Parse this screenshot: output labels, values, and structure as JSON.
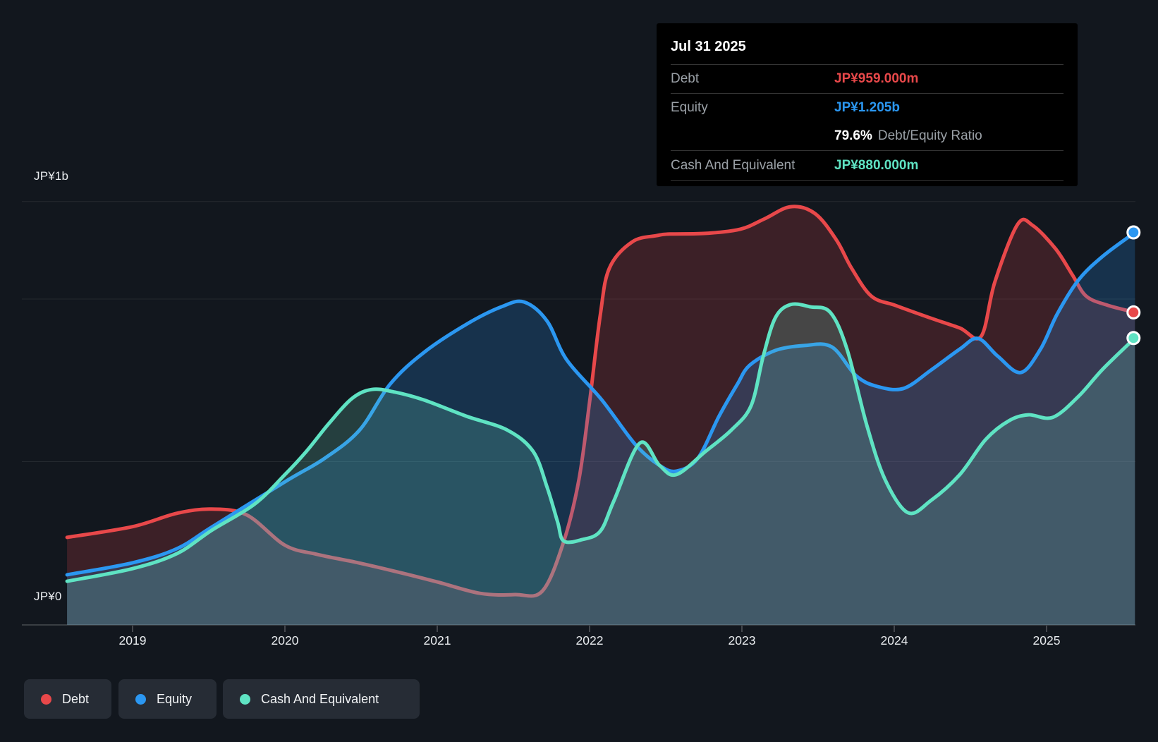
{
  "app": {
    "background": "#12171e"
  },
  "y_axis": {
    "top_label": "JP¥1b",
    "bottom_label": "JP¥0"
  },
  "x_axis": {
    "tick_years": [
      2019,
      2020,
      2021,
      2022,
      2023,
      2024,
      2025
    ]
  },
  "tooltip": {
    "title": "Jul 31 2025",
    "rows": [
      {
        "name": "debt",
        "label": "Debt",
        "value": "JP¥959.000m",
        "color": "#e8484a"
      },
      {
        "name": "equity",
        "label": "Equity",
        "value": "JP¥1.205b",
        "color": "#2b97f1"
      },
      {
        "name": "ratio",
        "label": "",
        "value_bold": "79.6%",
        "value_suffix": "Debt/Equity Ratio"
      },
      {
        "name": "cash",
        "label": "Cash And Equivalent",
        "value": "JP¥880.000m",
        "color": "#5fe3c3"
      }
    ]
  },
  "legend": [
    {
      "label": "Debt",
      "color": "#e8484a"
    },
    {
      "label": "Equity",
      "color": "#2b97f1"
    },
    {
      "label": "Cash And Equivalent",
      "color": "#5fe3c3"
    }
  ],
  "chart_data": {
    "type": "area",
    "title": "Debt to Equity history",
    "x_unit": "decimal_year",
    "x_range": [
      2018.57,
      2025.58
    ],
    "ylim_billion_jpy": [
      0,
      1.3
    ],
    "gridlines_billion_jpy": [
      0.5,
      1.0,
      1.3
    ],
    "grid_on": true,
    "legend_position": "bottom-left",
    "last_point_date": "Jul 31 2025",
    "last_values": {
      "debt": "JP¥959.000m",
      "equity": "JP¥1.205b",
      "cash": "JP¥880.000m",
      "debt_equity_ratio": "79.6%"
    },
    "series": [
      {
        "name": "Debt",
        "color": "#e8484a",
        "fill": "rgba(232,72,74,0.20)",
        "points": [
          [
            2018.57,
            0.267
          ],
          [
            2019.0,
            0.3
          ],
          [
            2019.29,
            0.341
          ],
          [
            2019.52,
            0.354
          ],
          [
            2019.75,
            0.336
          ],
          [
            2020.0,
            0.243
          ],
          [
            2020.21,
            0.215
          ],
          [
            2020.46,
            0.191
          ],
          [
            2020.72,
            0.163
          ],
          [
            2021.0,
            0.13
          ],
          [
            2021.28,
            0.095
          ],
          [
            2021.51,
            0.091
          ],
          [
            2021.69,
            0.102
          ],
          [
            2021.83,
            0.254
          ],
          [
            2021.93,
            0.445
          ],
          [
            2022.0,
            0.683
          ],
          [
            2022.07,
            0.95
          ],
          [
            2022.13,
            1.095
          ],
          [
            2022.28,
            1.176
          ],
          [
            2022.44,
            1.195
          ],
          [
            2022.53,
            1.2
          ],
          [
            2022.76,
            1.202
          ],
          [
            2022.99,
            1.215
          ],
          [
            2023.15,
            1.247
          ],
          [
            2023.32,
            1.284
          ],
          [
            2023.48,
            1.263
          ],
          [
            2023.62,
            1.182
          ],
          [
            2023.72,
            1.095
          ],
          [
            2023.85,
            1.009
          ],
          [
            2024.01,
            0.98
          ],
          [
            2024.23,
            0.943
          ],
          [
            2024.43,
            0.911
          ],
          [
            2024.57,
            0.885
          ],
          [
            2024.66,
            1.052
          ],
          [
            2024.81,
            1.23
          ],
          [
            2024.91,
            1.226
          ],
          [
            2025.06,
            1.154
          ],
          [
            2025.17,
            1.074
          ],
          [
            2025.26,
            1.009
          ],
          [
            2025.4,
            0.981
          ],
          [
            2025.58,
            0.959
          ]
        ]
      },
      {
        "name": "Equity",
        "color": "#2b97f1",
        "fill": "rgba(43,151,241,0.22)",
        "points": [
          [
            2018.57,
            0.152
          ],
          [
            2019.0,
            0.189
          ],
          [
            2019.29,
            0.232
          ],
          [
            2019.52,
            0.299
          ],
          [
            2020.0,
            0.438
          ],
          [
            2020.26,
            0.51
          ],
          [
            2020.49,
            0.597
          ],
          [
            2020.69,
            0.738
          ],
          [
            2020.91,
            0.835
          ],
          [
            2021.19,
            0.922
          ],
          [
            2021.42,
            0.976
          ],
          [
            2021.57,
            0.991
          ],
          [
            2021.72,
            0.933
          ],
          [
            2021.85,
            0.813
          ],
          [
            2022.08,
            0.69
          ],
          [
            2022.3,
            0.553
          ],
          [
            2022.46,
            0.488
          ],
          [
            2022.57,
            0.471
          ],
          [
            2022.71,
            0.51
          ],
          [
            2022.85,
            0.64
          ],
          [
            2022.97,
            0.738
          ],
          [
            2023.05,
            0.796
          ],
          [
            2023.22,
            0.842
          ],
          [
            2023.41,
            0.857
          ],
          [
            2023.59,
            0.853
          ],
          [
            2023.75,
            0.764
          ],
          [
            2023.89,
            0.731
          ],
          [
            2024.06,
            0.725
          ],
          [
            2024.24,
            0.781
          ],
          [
            2024.43,
            0.846
          ],
          [
            2024.55,
            0.879
          ],
          [
            2024.68,
            0.824
          ],
          [
            2024.83,
            0.774
          ],
          [
            2024.96,
            0.846
          ],
          [
            2025.07,
            0.954
          ],
          [
            2025.21,
            1.059
          ],
          [
            2025.37,
            1.132
          ],
          [
            2025.58,
            1.205
          ]
        ]
      },
      {
        "name": "Cash And Equivalent",
        "color": "#5fe3c3",
        "fill": "rgba(108,211,190,0.21)",
        "points": [
          [
            2018.57,
            0.132
          ],
          [
            2019.0,
            0.171
          ],
          [
            2019.29,
            0.217
          ],
          [
            2019.52,
            0.289
          ],
          [
            2019.8,
            0.369
          ],
          [
            2020.0,
            0.46
          ],
          [
            2020.14,
            0.531
          ],
          [
            2020.29,
            0.618
          ],
          [
            2020.44,
            0.694
          ],
          [
            2020.57,
            0.722
          ],
          [
            2020.72,
            0.714
          ],
          [
            2020.91,
            0.69
          ],
          [
            2021.19,
            0.64
          ],
          [
            2021.46,
            0.597
          ],
          [
            2021.63,
            0.531
          ],
          [
            2021.72,
            0.423
          ],
          [
            2021.79,
            0.315
          ],
          [
            2021.83,
            0.256
          ],
          [
            2021.95,
            0.26
          ],
          [
            2022.07,
            0.286
          ],
          [
            2022.16,
            0.38
          ],
          [
            2022.33,
            0.557
          ],
          [
            2022.46,
            0.488
          ],
          [
            2022.57,
            0.46
          ],
          [
            2022.76,
            0.531
          ],
          [
            2022.93,
            0.597
          ],
          [
            2023.06,
            0.672
          ],
          [
            2023.14,
            0.824
          ],
          [
            2023.22,
            0.943
          ],
          [
            2023.32,
            0.983
          ],
          [
            2023.45,
            0.976
          ],
          [
            2023.58,
            0.959
          ],
          [
            2023.69,
            0.846
          ],
          [
            2023.82,
            0.612
          ],
          [
            2023.94,
            0.445
          ],
          [
            2024.09,
            0.343
          ],
          [
            2024.24,
            0.38
          ],
          [
            2024.43,
            0.46
          ],
          [
            2024.6,
            0.568
          ],
          [
            2024.75,
            0.625
          ],
          [
            2024.88,
            0.644
          ],
          [
            2025.04,
            0.636
          ],
          [
            2025.21,
            0.701
          ],
          [
            2025.37,
            0.785
          ],
          [
            2025.58,
            0.88
          ]
        ]
      }
    ]
  }
}
